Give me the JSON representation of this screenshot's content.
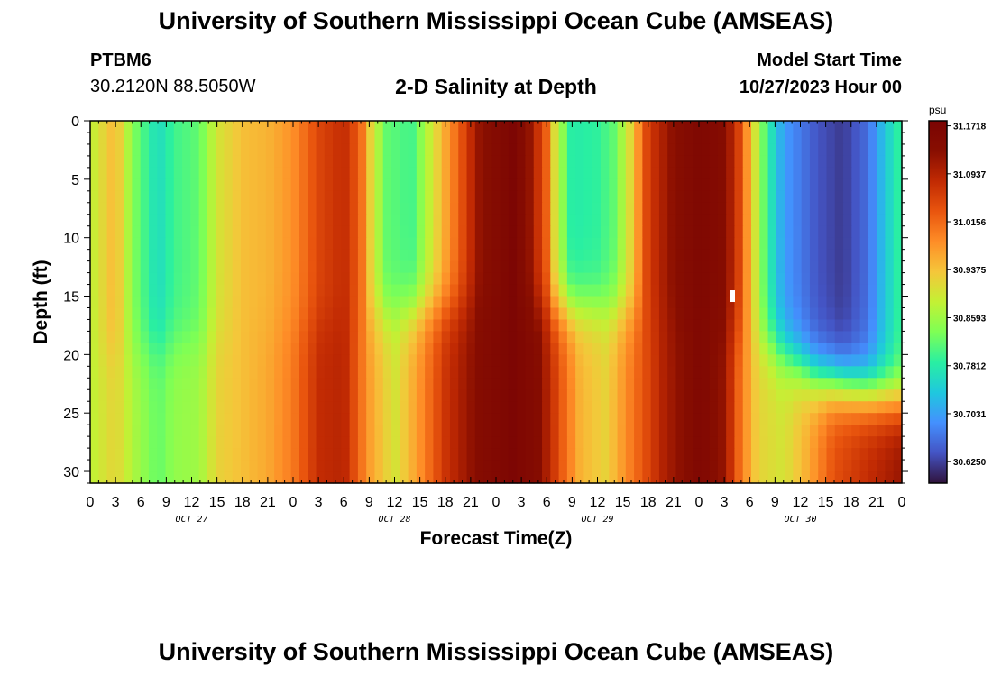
{
  "header": {
    "title": "University of Southern Mississippi Ocean Cube (AMSEAS)",
    "station_id": "PTBM6",
    "station_coords": "30.2120N  88.5050W",
    "plot_title": "2-D Salinity at Depth",
    "model_start_label": "Model Start Time",
    "model_start_value": "10/27/2023 Hour 00"
  },
  "footer": {
    "title": "University of Southern Mississippi Ocean Cube (AMSEAS)"
  },
  "colors": {
    "colormap": [
      "#30123b",
      "#4454c4",
      "#4490fe",
      "#1fc8de",
      "#29efa2",
      "#7eff55",
      "#c3f134",
      "#f5c63a",
      "#fe8d27",
      "#e9550e",
      "#c12a03",
      "#880e01",
      "#7a0403"
    ]
  },
  "chart_data": {
    "type": "heatmap",
    "xlabel": "Forecast Time(Z)",
    "ylabel": "Depth (ft)",
    "x_range": [
      0,
      96
    ],
    "y_range": [
      0,
      31
    ],
    "x_tick_labels": [
      "0",
      "3",
      "6",
      "9",
      "12",
      "15",
      "18",
      "21",
      "0",
      "3",
      "6",
      "9",
      "12",
      "15",
      "18",
      "21",
      "0",
      "3",
      "6",
      "9",
      "12",
      "15",
      "18",
      "21",
      "0",
      "3",
      "6",
      "9",
      "12",
      "15",
      "18",
      "21",
      "0"
    ],
    "y_ticks": [
      0,
      5,
      10,
      15,
      20,
      25,
      30
    ],
    "y_tick_labels": [
      "0",
      "5",
      "10",
      "15",
      "20",
      "25",
      "30"
    ],
    "day_labels": [
      "OCT 27",
      "OCT 28",
      "OCT 29",
      "OCT 30"
    ],
    "colorbar": {
      "unit": "psu",
      "range": [
        30.59,
        31.18
      ],
      "tick_values": [
        31.1718,
        31.0937,
        31.0156,
        30.9375,
        30.8593,
        30.7812,
        30.7031,
        30.625
      ],
      "tick_labels": [
        "31.1718",
        "31.0937",
        "31.0156",
        "30.9375",
        "30.8593",
        "30.7812",
        "30.7031",
        "30.6250"
      ]
    },
    "surface_profile": [
      [
        0,
        30.88
      ],
      [
        3,
        30.95
      ],
      [
        5,
        30.84
      ],
      [
        8,
        30.76
      ],
      [
        10,
        30.8
      ],
      [
        13,
        30.82
      ],
      [
        15,
        30.9
      ],
      [
        18,
        30.94
      ],
      [
        21,
        30.95
      ],
      [
        24,
        30.98
      ],
      [
        27,
        31.05
      ],
      [
        30,
        31.08
      ],
      [
        32,
        31.02
      ],
      [
        33,
        30.93
      ],
      [
        35,
        30.82
      ],
      [
        38,
        30.8
      ],
      [
        41,
        30.92
      ],
      [
        44,
        31.04
      ],
      [
        46,
        31.12
      ],
      [
        50,
        31.17
      ],
      [
        52,
        31.12
      ],
      [
        54,
        31.02
      ],
      [
        55,
        30.9
      ],
      [
        57,
        30.78
      ],
      [
        60,
        30.79
      ],
      [
        62,
        30.82
      ],
      [
        64,
        30.92
      ],
      [
        66,
        31.06
      ],
      [
        69,
        31.13
      ],
      [
        72,
        31.16
      ],
      [
        75,
        31.14
      ],
      [
        77,
        31.04
      ],
      [
        78,
        30.95
      ],
      [
        80,
        30.8
      ],
      [
        82,
        30.7
      ],
      [
        86,
        30.64
      ],
      [
        89,
        30.62
      ],
      [
        92,
        30.66
      ],
      [
        94,
        30.74
      ],
      [
        96,
        30.8
      ]
    ],
    "bottom_profile": [
      [
        0,
        30.88
      ],
      [
        3,
        30.92
      ],
      [
        5,
        30.87
      ],
      [
        8,
        30.82
      ],
      [
        10,
        30.85
      ],
      [
        13,
        30.86
      ],
      [
        15,
        30.92
      ],
      [
        18,
        30.94
      ],
      [
        21,
        30.96
      ],
      [
        24,
        31.0
      ],
      [
        27,
        31.08
      ],
      [
        30,
        31.09
      ],
      [
        33,
        30.97
      ],
      [
        36,
        30.9
      ],
      [
        39,
        30.98
      ],
      [
        42,
        31.07
      ],
      [
        46,
        31.14
      ],
      [
        50,
        31.17
      ],
      [
        53,
        31.14
      ],
      [
        56,
        31.02
      ],
      [
        58,
        30.95
      ],
      [
        61,
        30.92
      ],
      [
        64,
        31.0
      ],
      [
        68,
        31.1
      ],
      [
        72,
        31.16
      ],
      [
        75,
        31.12
      ],
      [
        77,
        31.0
      ],
      [
        79,
        30.92
      ],
      [
        82,
        30.9
      ],
      [
        85,
        30.96
      ],
      [
        88,
        31.04
      ],
      [
        92,
        31.08
      ],
      [
        96,
        31.12
      ]
    ],
    "transition_depth_ft": [
      [
        0,
        20
      ],
      [
        30,
        17
      ],
      [
        40,
        16
      ],
      [
        60,
        16
      ],
      [
        72,
        17
      ],
      [
        80,
        19
      ],
      [
        86,
        22
      ],
      [
        96,
        24
      ]
    ],
    "transition_width_ft": 3.5,
    "marker": {
      "x": 76,
      "y": 15
    }
  }
}
